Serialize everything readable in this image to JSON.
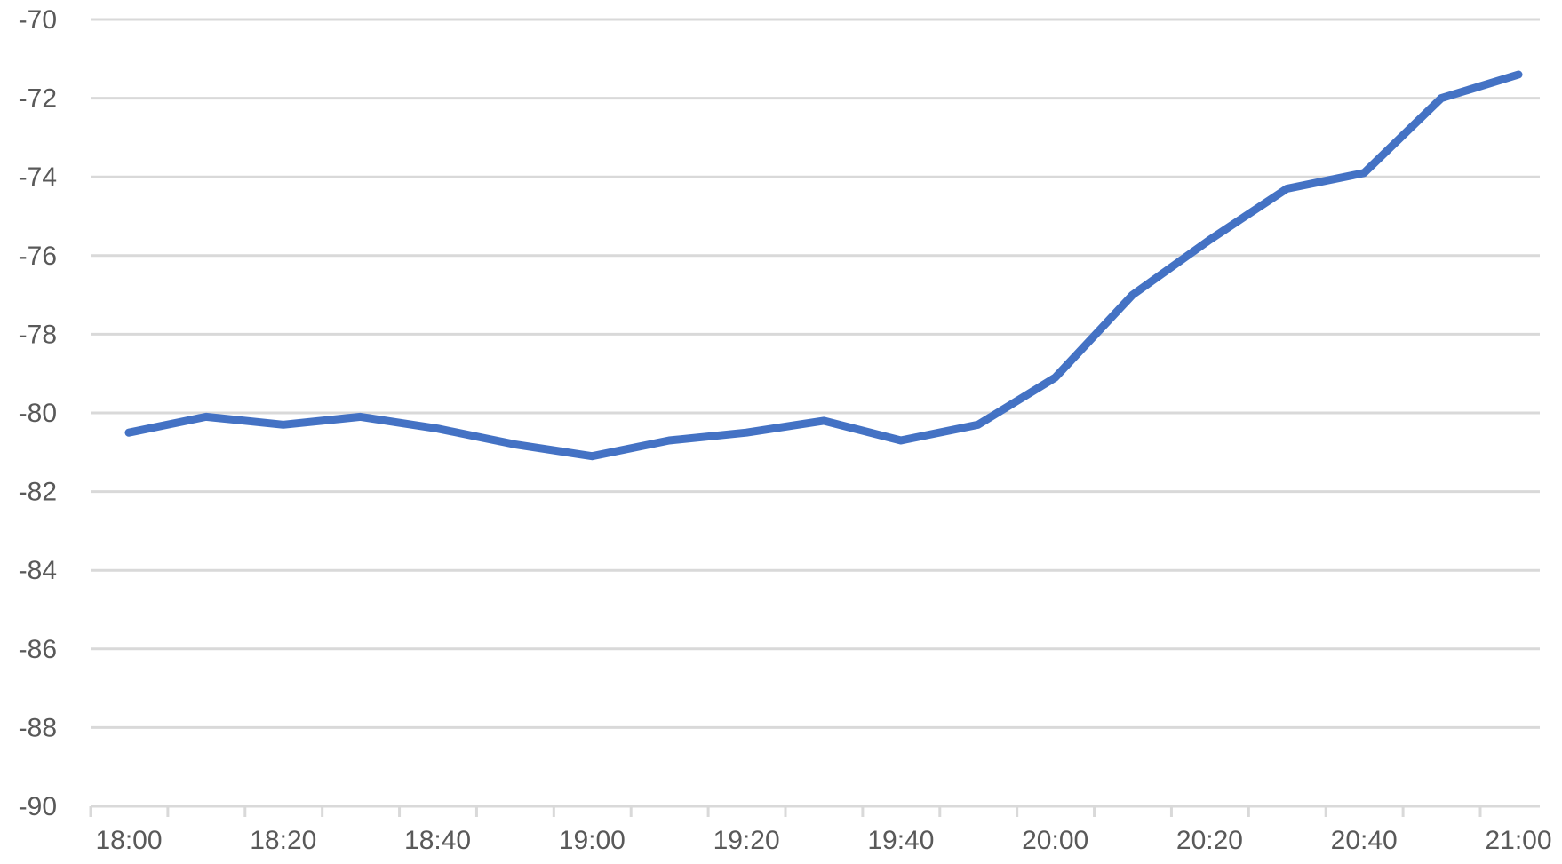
{
  "chart_data": {
    "type": "line",
    "title": "",
    "xlabel": "",
    "ylabel": "",
    "ylim": [
      -90,
      -70
    ],
    "y_ticks": [
      -70,
      -72,
      -74,
      -76,
      -78,
      -80,
      -82,
      -84,
      -86,
      -88,
      -90
    ],
    "x_range": [
      "18:00",
      "21:00"
    ],
    "x_tick_labels": [
      "18:00",
      "18:20",
      "18:40",
      "19:00",
      "19:20",
      "19:40",
      "20:00",
      "20:20",
      "20:40",
      "21:00"
    ],
    "grid": true,
    "legend": "none",
    "line_color": "#4472c4",
    "series": [
      {
        "x": [
          "18:00",
          "18:10",
          "18:20",
          "18:30",
          "18:40",
          "18:50",
          "19:00",
          "19:10",
          "19:20",
          "19:30",
          "19:40",
          "19:50",
          "20:00",
          "20:10",
          "20:20",
          "20:30",
          "20:40",
          "20:50",
          "21:00"
        ],
        "values": [
          -80.5,
          -80.1,
          -80.3,
          -80.1,
          -80.4,
          -80.8,
          -81.1,
          -80.7,
          -80.5,
          -80.2,
          -80.7,
          -80.3,
          -79.1,
          -77.0,
          -75.6,
          -74.3,
          -73.9,
          -72.0,
          -71.4
        ]
      }
    ]
  }
}
